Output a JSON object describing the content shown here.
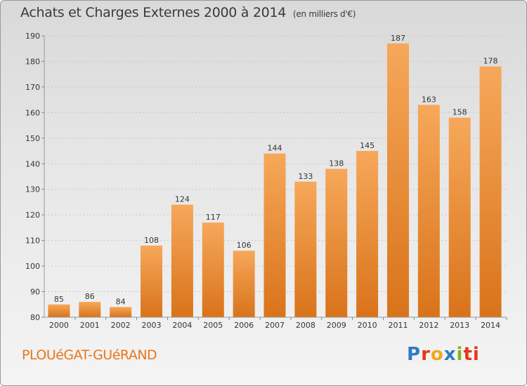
{
  "chart_data": {
    "type": "bar",
    "title": "Achats et Charges Externes 2000 à 2014",
    "unit": "(en milliers d'€)",
    "categories": [
      "2000",
      "2001",
      "2002",
      "2003",
      "2004",
      "2005",
      "2006",
      "2007",
      "2008",
      "2009",
      "2010",
      "2011",
      "2012",
      "2013",
      "2014"
    ],
    "values": [
      85,
      86,
      84,
      108,
      124,
      117,
      106,
      144,
      133,
      138,
      145,
      187,
      163,
      158,
      178
    ],
    "ylim": [
      80,
      190
    ],
    "yticks": [
      80,
      90,
      100,
      110,
      120,
      130,
      140,
      150,
      160,
      170,
      180,
      190
    ],
    "grid": true,
    "bar_color": "#e8821e"
  },
  "footer": {
    "place": "PLOUéGAT-GUéRAND",
    "logo": [
      "P",
      "r",
      "o",
      "x",
      "i",
      "ti"
    ]
  }
}
